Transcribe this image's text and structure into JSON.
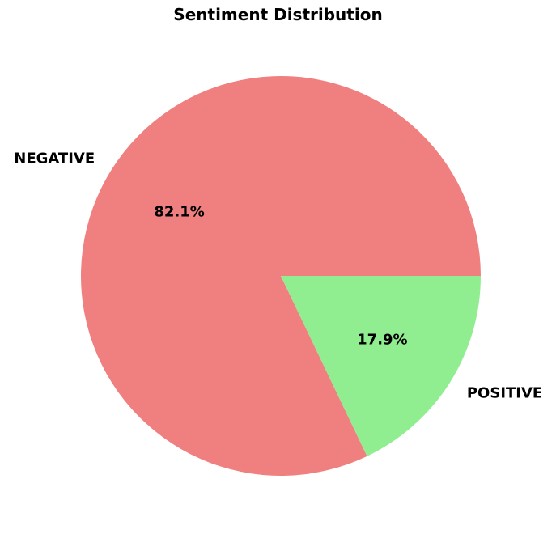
{
  "chart_data": {
    "type": "pie",
    "title": "Sentiment Distribution",
    "categories": [
      "NEGATIVE",
      "POSITIVE"
    ],
    "values": [
      82.1,
      17.9
    ],
    "value_labels": [
      "82.1%",
      "17.9%"
    ],
    "colors": [
      "#f08080",
      "#90ee90"
    ],
    "start_angle_deg": 0,
    "direction": "counterclockwise"
  }
}
